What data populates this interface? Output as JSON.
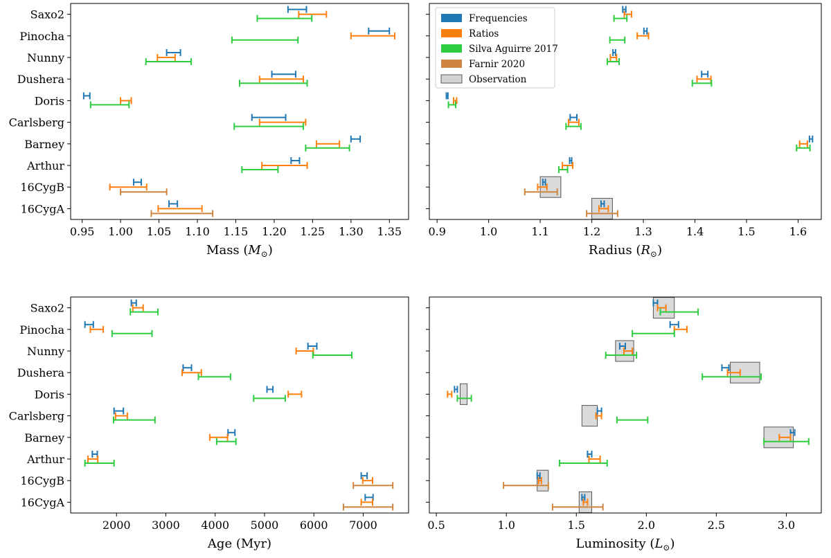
{
  "colors": {
    "Frequencies": "#1f77b4",
    "Ratios": "#ff7f0e",
    "Silva Aguirre 2017": "#2ecc40",
    "Farnir 2020": "#cd853f",
    "Observation": "#d3d3d3"
  },
  "stars": [
    "Saxo2",
    "Pinocha",
    "Nunny",
    "Dushera",
    "Doris",
    "Carlsberg",
    "Barney",
    "Arthur",
    "16CygB",
    "16CygA"
  ],
  "legend": [
    {
      "label": "Frequencies",
      "kind": "Frequencies"
    },
    {
      "label": "Ratios",
      "kind": "Ratios"
    },
    {
      "label": "Silva Aguirre 2017",
      "kind": "Silva Aguirre 2017"
    },
    {
      "label": "Farnir 2020",
      "kind": "Farnir 2020"
    },
    {
      "label": "Observation",
      "kind": "Observation"
    }
  ],
  "chart_data": [
    {
      "type": "errorbar",
      "title": "",
      "xlabel": "Mass ($M_\\odot$)",
      "xlabel_text": "Mass (",
      "xlabel_sym": "M",
      "xlabel_sub": "⊙",
      "xlim": [
        0.935,
        1.375
      ],
      "xticks": [
        0.95,
        1.0,
        1.05,
        1.1,
        1.15,
        1.2,
        1.25,
        1.3,
        1.35
      ],
      "xtick_labels": [
        "0.95",
        "1.00",
        "1.05",
        "1.10",
        "1.15",
        "1.20",
        "1.25",
        "1.30",
        "1.35"
      ],
      "legend": false,
      "series": [
        {
          "name": "Frequencies",
          "intervals": {
            "Saxo2": [
              1.218,
              1.242
            ],
            "Pinocha": [
              1.323,
              1.35
            ],
            "Nunny": [
              1.06,
              1.078
            ],
            "Dushera": [
              1.197,
              1.228
            ],
            "Doris": [
              0.952,
              0.96
            ],
            "Carlsberg": [
              1.171,
              1.215
            ],
            "Barney": [
              1.3,
              1.312
            ],
            "Arthur": [
              1.222,
              1.233
            ],
            "16CygB": [
              1.017,
              1.027
            ],
            "16CygA": [
              1.063,
              1.074
            ]
          }
        },
        {
          "name": "Ratios",
          "intervals": {
            "Saxo2": [
              1.232,
              1.268
            ],
            "Pinocha": [
              1.3,
              1.357
            ],
            "Nunny": [
              1.048,
              1.071
            ],
            "Dushera": [
              1.181,
              1.238
            ],
            "Doris": [
              1.0,
              1.014
            ],
            "Carlsberg": [
              1.181,
              1.241
            ],
            "Barney": [
              1.255,
              1.285
            ],
            "Arthur": [
              1.184,
              1.243
            ],
            "16CygB": [
              0.986,
              1.034
            ],
            "16CygA": [
              1.049,
              1.106
            ]
          }
        },
        {
          "name": "Silva Aguirre 2017",
          "intervals": {
            "Saxo2": [
              1.178,
              1.249
            ],
            "Pinocha": [
              1.145,
              1.231
            ],
            "Nunny": [
              1.033,
              1.092
            ],
            "Dushera": [
              1.155,
              1.243
            ],
            "Doris": [
              0.961,
              1.011
            ],
            "Carlsberg": [
              1.148,
              1.238
            ],
            "Barney": [
              1.241,
              1.298
            ],
            "Arthur": [
              1.158,
              1.205
            ]
          }
        },
        {
          "name": "Farnir 2020",
          "intervals": {
            "16CygB": [
              1.0,
              1.06
            ],
            "16CygA": [
              1.04,
              1.12
            ]
          }
        }
      ]
    },
    {
      "type": "errorbar",
      "title": "",
      "xlabel": "Radius ($R_\\odot$)",
      "xlabel_text": "Radius (",
      "xlabel_sym": "R",
      "xlabel_sub": "⊙",
      "xlim": [
        0.885,
        1.645
      ],
      "xticks": [
        0.9,
        1.0,
        1.1,
        1.2,
        1.3,
        1.4,
        1.5,
        1.6
      ],
      "xtick_labels": [
        "0.9",
        "1.0",
        "1.1",
        "1.2",
        "1.3",
        "1.4",
        "1.5",
        "1.6"
      ],
      "legend": true,
      "series": [
        {
          "name": "Frequencies",
          "intervals": {
            "Saxo2": [
              1.26,
              1.266
            ],
            "Pinocha": [
              1.301,
              1.307
            ],
            "Nunny": [
              1.241,
              1.246
            ],
            "Dushera": [
              1.413,
              1.425
            ],
            "Doris": [
              0.918,
              0.921
            ],
            "Carlsberg": [
              1.158,
              1.171
            ],
            "Barney": [
              1.622,
              1.628
            ],
            "Arthur": [
              1.157,
              1.161
            ],
            "16CygB": [
              1.105,
              1.11
            ],
            "16CygA": [
              1.218,
              1.224
            ]
          }
        },
        {
          "name": "Ratios",
          "intervals": {
            "Saxo2": [
              1.263,
              1.277
            ],
            "Pinocha": [
              1.288,
              1.31
            ],
            "Nunny": [
              1.236,
              1.248
            ],
            "Dushera": [
              1.404,
              1.431
            ],
            "Doris": [
              0.932,
              0.938
            ],
            "Carlsberg": [
              1.155,
              1.175
            ],
            "Barney": [
              1.603,
              1.618
            ],
            "Arthur": [
              1.143,
              1.163
            ],
            "16CygB": [
              1.095,
              1.113
            ],
            "16CygA": [
              1.214,
              1.232
            ]
          }
        },
        {
          "name": "Silva Aguirre 2017",
          "intervals": {
            "Saxo2": [
              1.243,
              1.268
            ],
            "Pinocha": [
              1.235,
              1.264
            ],
            "Nunny": [
              1.23,
              1.253
            ],
            "Dushera": [
              1.395,
              1.432
            ],
            "Doris": [
              0.922,
              0.936
            ],
            "Carlsberg": [
              1.15,
              1.179
            ],
            "Barney": [
              1.597,
              1.623
            ],
            "Arthur": [
              1.136,
              1.153
            ]
          }
        },
        {
          "name": "Farnir 2020",
          "intervals": {
            "16CygB": [
              1.07,
              1.133
            ],
            "16CygA": [
              1.19,
              1.25
            ]
          }
        }
      ],
      "observation": {
        "16CygB": [
          1.1,
          1.14
        ],
        "16CygA": [
          1.2,
          1.24
        ]
      }
    },
    {
      "type": "errorbar",
      "title": "",
      "xlabel": "Age (Myr)",
      "xlabel_text": "Age (Myr)",
      "xlim": [
        1070,
        7920
      ],
      "xticks": [
        2000,
        3000,
        4000,
        5000,
        6000,
        7000
      ],
      "xtick_labels": [
        "2000",
        "3000",
        "4000",
        "5000",
        "6000",
        "7000"
      ],
      "legend": false,
      "series": [
        {
          "name": "Frequencies",
          "intervals": {
            "Saxo2": [
              2300,
              2400
            ],
            "Pinocha": [
              1360,
              1530
            ],
            "Nunny": [
              5880,
              6060
            ],
            "Dushera": [
              3350,
              3520
            ],
            "Doris": [
              5050,
              5170
            ],
            "Carlsberg": [
              1950,
              2140
            ],
            "Barney": [
              4260,
              4400
            ],
            "Arthur": [
              1510,
              1610
            ],
            "16CygB": [
              6960,
              7080
            ],
            "16CygA": [
              7040,
              7200
            ]
          }
        },
        {
          "name": "Ratios",
          "intervals": {
            "Saxo2": [
              2330,
              2540
            ],
            "Pinocha": [
              1470,
              1730
            ],
            "Nunny": [
              5640,
              5990
            ],
            "Dushera": [
              3330,
              3720
            ],
            "Doris": [
              5480,
              5750
            ],
            "Carlsberg": [
              1980,
              2220
            ],
            "Barney": [
              3890,
              4250
            ],
            "Arthur": [
              1420,
              1620
            ],
            "16CygB": [
              6990,
              7190
            ],
            "16CygA": [
              6960,
              7190
            ]
          }
        },
        {
          "name": "Silva Aguirre 2017",
          "intervals": {
            "Saxo2": [
              2280,
              2840
            ],
            "Pinocha": [
              1910,
              2720
            ],
            "Nunny": [
              5980,
              6770
            ],
            "Dushera": [
              3660,
              4310
            ],
            "Doris": [
              4780,
              5420
            ],
            "Carlsberg": [
              1940,
              2780
            ],
            "Barney": [
              4030,
              4420
            ],
            "Arthur": [
              1360,
              1950
            ]
          }
        },
        {
          "name": "Farnir 2020",
          "intervals": {
            "16CygB": [
              6800,
              7600
            ],
            "16CygA": [
              6600,
              7600
            ]
          }
        }
      ]
    },
    {
      "type": "errorbar",
      "title": "",
      "xlabel": "Luminosity ($L_\\odot$)",
      "xlabel_text": "Luminosity (",
      "xlabel_sym": "L",
      "xlabel_sub": "⊙",
      "xlim": [
        0.45,
        3.25
      ],
      "xticks": [
        0.5,
        1.0,
        1.5,
        2.0,
        2.5,
        3.0
      ],
      "xtick_labels": [
        "0.5",
        "1.0",
        "1.5",
        "2.0",
        "2.5",
        "3.0"
      ],
      "legend": false,
      "series": [
        {
          "name": "Frequencies",
          "intervals": {
            "Saxo2": [
              2.05,
              2.08
            ],
            "Pinocha": [
              2.17,
              2.23
            ],
            "Nunny": [
              1.81,
              1.85
            ],
            "Dushera": [
              2.54,
              2.59
            ],
            "Doris": [
              0.63,
              0.65
            ],
            "Carlsberg": [
              1.65,
              1.68
            ],
            "Barney": [
              3.03,
              3.06
            ],
            "Arthur": [
              1.58,
              1.61
            ],
            "16CygB": [
              1.22,
              1.24
            ],
            "16CygA": [
              1.54,
              1.56
            ]
          }
        },
        {
          "name": "Ratios",
          "intervals": {
            "Saxo2": [
              2.08,
              2.14
            ],
            "Pinocha": [
              2.2,
              2.29
            ],
            "Nunny": [
              1.84,
              1.9
            ],
            "Dushera": [
              2.58,
              2.67
            ],
            "Doris": [
              0.58,
              0.61
            ],
            "Carlsberg": [
              1.64,
              1.68
            ],
            "Barney": [
              2.95,
              3.03
            ],
            "Arthur": [
              1.59,
              1.67
            ],
            "16CygB": [
              1.23,
              1.25
            ],
            "16CygA": [
              1.55,
              1.58
            ]
          }
        },
        {
          "name": "Silva Aguirre 2017",
          "intervals": {
            "Saxo2": [
              2.1,
              2.37
            ],
            "Pinocha": [
              1.9,
              2.2
            ],
            "Nunny": [
              1.71,
              1.93
            ],
            "Dushera": [
              2.4,
              2.82
            ],
            "Doris": [
              0.65,
              0.75
            ],
            "Carlsberg": [
              1.79,
              2.01
            ],
            "Barney": [
              2.84,
              3.16
            ],
            "Arthur": [
              1.38,
              1.72
            ]
          }
        },
        {
          "name": "Farnir 2020",
          "intervals": {
            "16CygB": [
              0.98,
              1.3
            ],
            "16CygA": [
              1.33,
              1.69
            ]
          }
        }
      ],
      "observation": {
        "Saxo2": [
          2.05,
          2.2
        ],
        "Nunny": [
          1.78,
          1.91
        ],
        "Dushera": [
          2.6,
          2.81
        ],
        "Doris": [
          0.67,
          0.72
        ],
        "Carlsberg": [
          1.54,
          1.65
        ],
        "Barney": [
          2.84,
          3.05
        ],
        "16CygB": [
          1.22,
          1.3
        ],
        "16CygA": [
          1.52,
          1.61
        ]
      }
    }
  ]
}
